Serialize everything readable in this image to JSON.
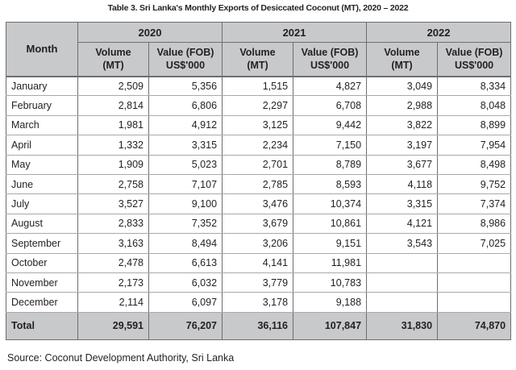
{
  "title": "Table 3. Sri Lanka's Monthly Exports of Desiccated Coconut (MT), 2020 – 2022",
  "header": {
    "month": "Month",
    "years": [
      "2020",
      "2021",
      "2022"
    ],
    "volume_line1": "Volume",
    "volume_line2": "(MT)",
    "value_line1": "Value (FOB)",
    "value_line2": "US$'000"
  },
  "rows": [
    {
      "month": "January",
      "v2020": "2,509",
      "f2020": "5,356",
      "v2021": "1,515",
      "f2021": "4,827",
      "v2022": "3,049",
      "f2022": "8,334"
    },
    {
      "month": "February",
      "v2020": "2,814",
      "f2020": "6,806",
      "v2021": "2,297",
      "f2021": "6,708",
      "v2022": "2,988",
      "f2022": "8,048"
    },
    {
      "month": "March",
      "v2020": "1,981",
      "f2020": "4,912",
      "v2021": "3,125",
      "f2021": "9,442",
      "v2022": "3,822",
      "f2022": "8,899"
    },
    {
      "month": "April",
      "v2020": "1,332",
      "f2020": "3,315",
      "v2021": "2,234",
      "f2021": "7,150",
      "v2022": "3,197",
      "f2022": "7,954"
    },
    {
      "month": "May",
      "v2020": "1,909",
      "f2020": "5,023",
      "v2021": "2,701",
      "f2021": "8,789",
      "v2022": "3,677",
      "f2022": "8,498"
    },
    {
      "month": "June",
      "v2020": "2,758",
      "f2020": "7,107",
      "v2021": "2,785",
      "f2021": "8,593",
      "v2022": "4,118",
      "f2022": "9,752"
    },
    {
      "month": "July",
      "v2020": "3,527",
      "f2020": "9,100",
      "v2021": "3,476",
      "f2021": "10,374",
      "v2022": "3,315",
      "f2022": "7,374"
    },
    {
      "month": "August",
      "v2020": "2,833",
      "f2020": "7,352",
      "v2021": "3,679",
      "f2021": "10,861",
      "v2022": "4,121",
      "f2022": "8,986"
    },
    {
      "month": "September",
      "v2020": "3,163",
      "f2020": "8,494",
      "v2021": "3,206",
      "f2021": "9,151",
      "v2022": "3,543",
      "f2022": "7,025"
    },
    {
      "month": "October",
      "v2020": "2,478",
      "f2020": "6,613",
      "v2021": "4,141",
      "f2021": "11,981",
      "v2022": "",
      "f2022": ""
    },
    {
      "month": "November",
      "v2020": "2,173",
      "f2020": "6,032",
      "v2021": "3,779",
      "f2021": "10,783",
      "v2022": "",
      "f2022": ""
    },
    {
      "month": "December",
      "v2020": "2,114",
      "f2020": "6,097",
      "v2021": "3,178",
      "f2021": "9,188",
      "v2022": "",
      "f2022": ""
    }
  ],
  "total": {
    "label": "Total",
    "v2020": "29,591",
    "f2020": "76,207",
    "v2021": "36,116",
    "f2021": "107,847",
    "v2022": "31,830",
    "f2022": "74,870"
  },
  "source": "Source: Coconut Development Authority, Sri Lanka"
}
